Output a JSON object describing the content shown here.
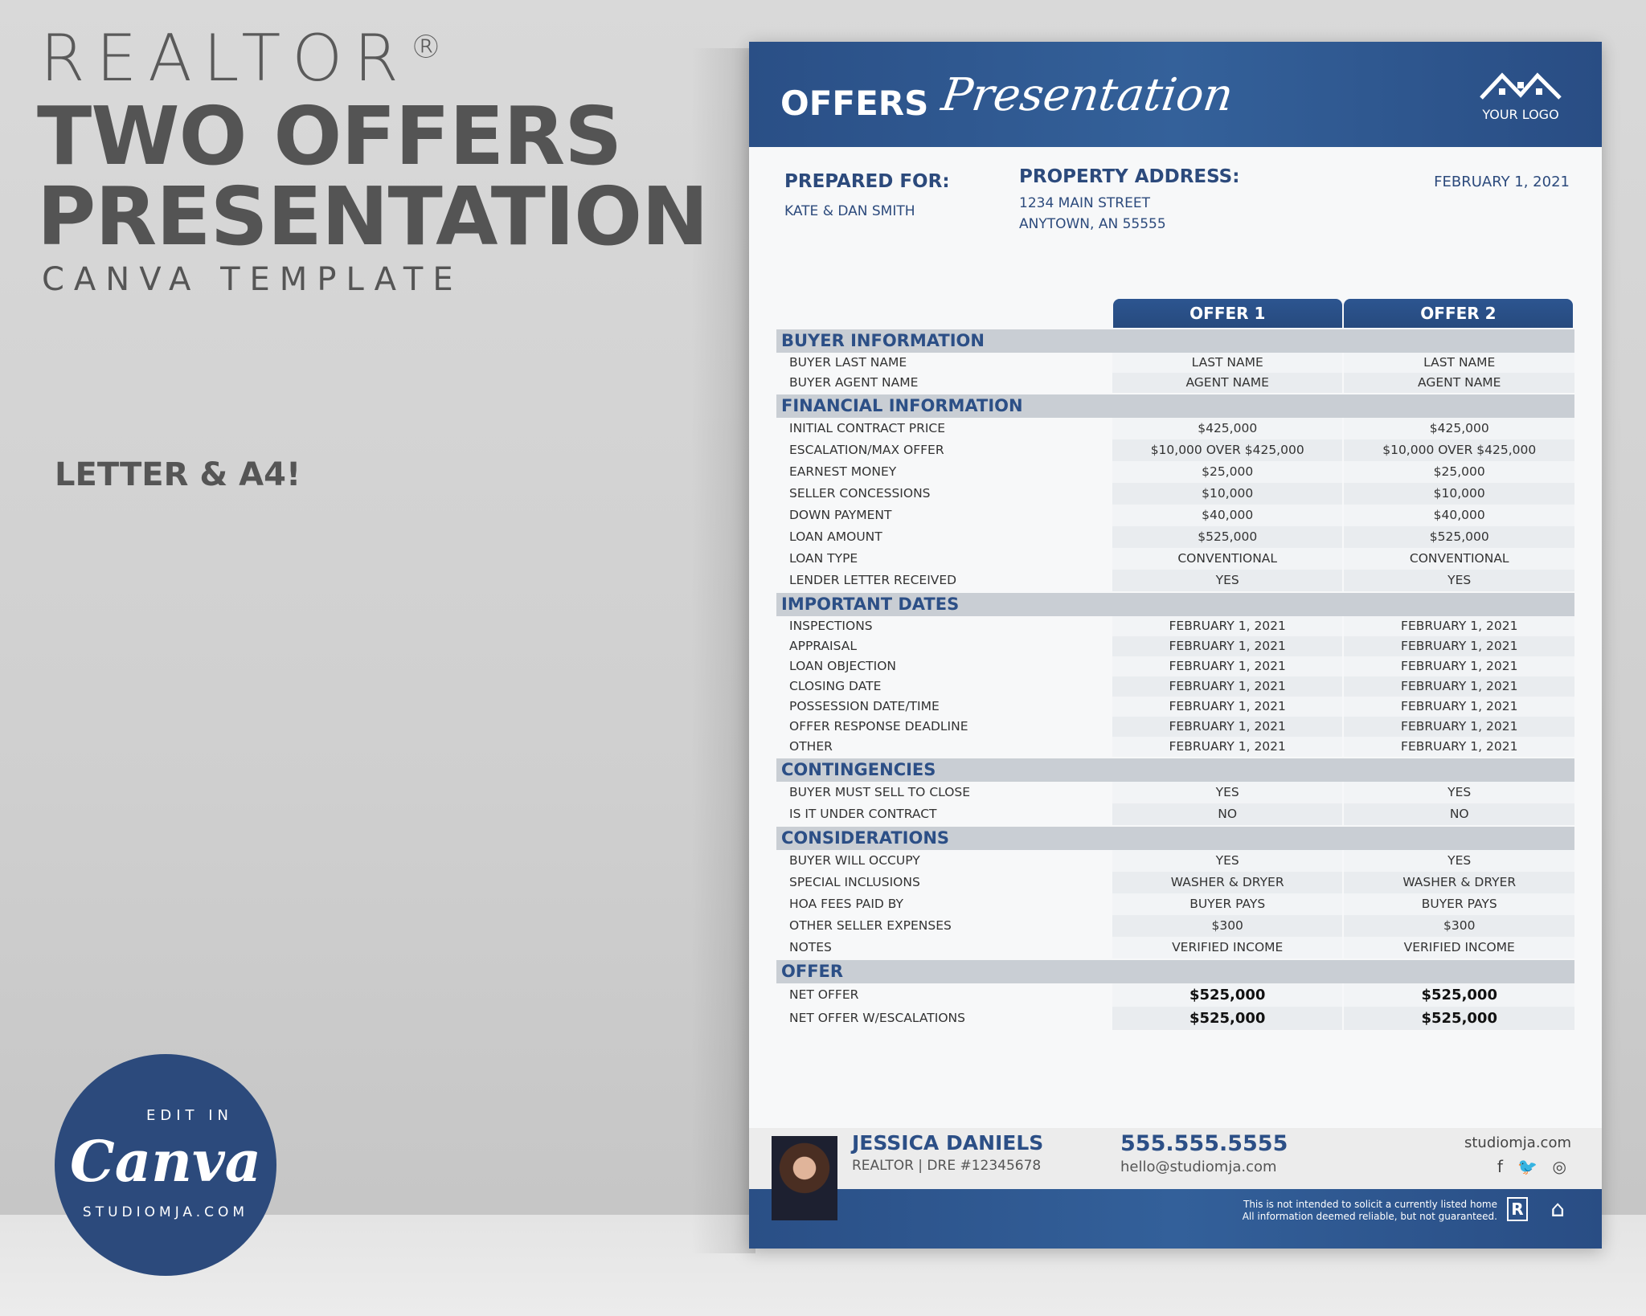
{
  "promo": {
    "realtor": "REALTOR",
    "reg": "®",
    "title_line1": "TWO OFFERS",
    "title_line2": "PRESENTATION",
    "subtitle": "CANVA TEMPLATE",
    "sizes": "LETTER & A4!",
    "badge": {
      "edit_in": "EDIT IN",
      "canva": "Canva",
      "studio": "STUDIOMJA.COM"
    }
  },
  "header": {
    "title_bold": "OFFERS",
    "title_script": "Presentation",
    "logo_text": "YOUR LOGO"
  },
  "info": {
    "prepared_for_label": "PREPARED FOR:",
    "prepared_for": "KATE & DAN SMITH",
    "property_label": "PROPERTY ADDRESS:",
    "address_line1": "1234 MAIN STREET",
    "address_line2": "ANYTOWN, AN 55555",
    "date": "FEBRUARY 1, 2021"
  },
  "columns": [
    "OFFER 1",
    "OFFER 2"
  ],
  "sections": [
    {
      "title": "BUYER INFORMATION",
      "h": 25,
      "rows": [
        [
          "BUYER LAST NAME",
          "LAST NAME",
          "LAST NAME"
        ],
        [
          "BUYER AGENT NAME",
          "AGENT NAME",
          "AGENT NAME"
        ]
      ]
    },
    {
      "title": "FINANCIAL INFORMATION",
      "h": 27,
      "rows": [
        [
          "INITIAL CONTRACT PRICE",
          "$425,000",
          "$425,000"
        ],
        [
          "ESCALATION/MAX OFFER",
          "$10,000 OVER $425,000",
          "$10,000 OVER $425,000"
        ],
        [
          "EARNEST MONEY",
          "$25,000",
          "$25,000"
        ],
        [
          "SELLER CONCESSIONS",
          "$10,000",
          "$10,000"
        ],
        [
          "DOWN PAYMENT",
          "$40,000",
          "$40,000"
        ],
        [
          "LOAN AMOUNT",
          "$525,000",
          "$525,000"
        ],
        [
          "LOAN TYPE",
          "CONVENTIONAL",
          "CONVENTIONAL"
        ],
        [
          "LENDER LETTER RECEIVED",
          "YES",
          "YES"
        ]
      ]
    },
    {
      "title": "IMPORTANT DATES",
      "h": 25,
      "rows": [
        [
          "INSPECTIONS",
          "FEBRUARY 1, 2021",
          "FEBRUARY 1, 2021"
        ],
        [
          "APPRAISAL",
          "FEBRUARY 1, 2021",
          "FEBRUARY 1, 2021"
        ],
        [
          "LOAN OBJECTION",
          "FEBRUARY 1, 2021",
          "FEBRUARY 1, 2021"
        ],
        [
          "CLOSING DATE",
          "FEBRUARY 1, 2021",
          "FEBRUARY 1, 2021"
        ],
        [
          "POSSESSION DATE/TIME",
          "FEBRUARY 1, 2021",
          "FEBRUARY 1, 2021"
        ],
        [
          "OFFER RESPONSE DEADLINE",
          "FEBRUARY 1, 2021",
          "FEBRUARY 1, 2021"
        ],
        [
          "OTHER",
          "FEBRUARY 1, 2021",
          "FEBRUARY 1, 2021"
        ]
      ]
    },
    {
      "title": "CONTINGENCIES",
      "h": 27,
      "rows": [
        [
          "BUYER MUST SELL TO CLOSE",
          "YES",
          "YES"
        ],
        [
          "IS IT UNDER CONTRACT",
          "NO",
          "NO"
        ]
      ]
    },
    {
      "title": "CONSIDERATIONS",
      "h": 27,
      "rows": [
        [
          "BUYER WILL OCCUPY",
          "YES",
          "YES"
        ],
        [
          "SPECIAL INCLUSIONS",
          "WASHER & DRYER",
          "WASHER & DRYER"
        ],
        [
          "HOA FEES PAID BY",
          "BUYER PAYS",
          "BUYER PAYS"
        ],
        [
          "OTHER SELLER EXPENSES",
          "$300",
          "$300"
        ],
        [
          "NOTES",
          "VERIFIED INCOME",
          "VERIFIED INCOME"
        ]
      ]
    },
    {
      "title": "OFFER",
      "h": 29,
      "bold": true,
      "rows": [
        [
          "NET OFFER",
          "$525,000",
          "$525,000"
        ],
        [
          "NET OFFER W/ESCALATIONS",
          "$525,000",
          "$525,000"
        ]
      ]
    }
  ],
  "footer": {
    "name": "JESSICA DANIELS",
    "role": "REALTOR | DRE #12345678",
    "phone": "555.555.5555",
    "email": "hello@studiomja.com",
    "website": "studiomja.com",
    "social": "f 🐦 ◎",
    "disclaimer1": "This is not intended to solicit a currently listed home",
    "disclaimer2": "All information deemed reliable, but not guaranteed.",
    "realtor_mark": "R",
    "eho_mark": "⌂"
  },
  "colors": {
    "brand_blue": "#2c4f86",
    "section_gray": "#c9ced4"
  }
}
